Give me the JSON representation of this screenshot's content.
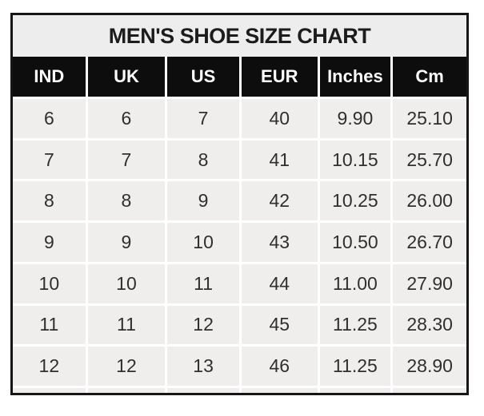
{
  "title": "MEN'S SHOE SIZE CHART",
  "colors": {
    "page_bg": "#ffffff",
    "table_border": "#161616",
    "title_bg": "#ededed",
    "title_text": "#1c1c1c",
    "header_bg": "#0d0d0d",
    "header_text": "#fdfdfd",
    "cell_bg": "#efeeec",
    "cell_text": "#2f2f2f",
    "grid_line": "#ffffff"
  },
  "chart_data": {
    "type": "table",
    "title": "MEN'S SHOE SIZE CHART",
    "columns": [
      "IND",
      "UK",
      "US",
      "EUR",
      "Inches",
      "Cm"
    ],
    "rows": [
      [
        "6",
        "6",
        "7",
        "40",
        "9.90",
        "25.10"
      ],
      [
        "7",
        "7",
        "8",
        "41",
        "10.15",
        "25.70"
      ],
      [
        "8",
        "8",
        "9",
        "42",
        "10.25",
        "26.00"
      ],
      [
        "9",
        "9",
        "10",
        "43",
        "10.50",
        "26.70"
      ],
      [
        "10",
        "10",
        "11",
        "44",
        "11.00",
        "27.90"
      ],
      [
        "11",
        "11",
        "12",
        "45",
        "11.25",
        "28.30"
      ],
      [
        "12",
        "12",
        "13",
        "46",
        "11.25",
        "28.90"
      ]
    ],
    "layout": {
      "header_style": "black-background-white-text",
      "body_style": "light-gray-cells-white-gridlines",
      "grid": "on"
    }
  }
}
